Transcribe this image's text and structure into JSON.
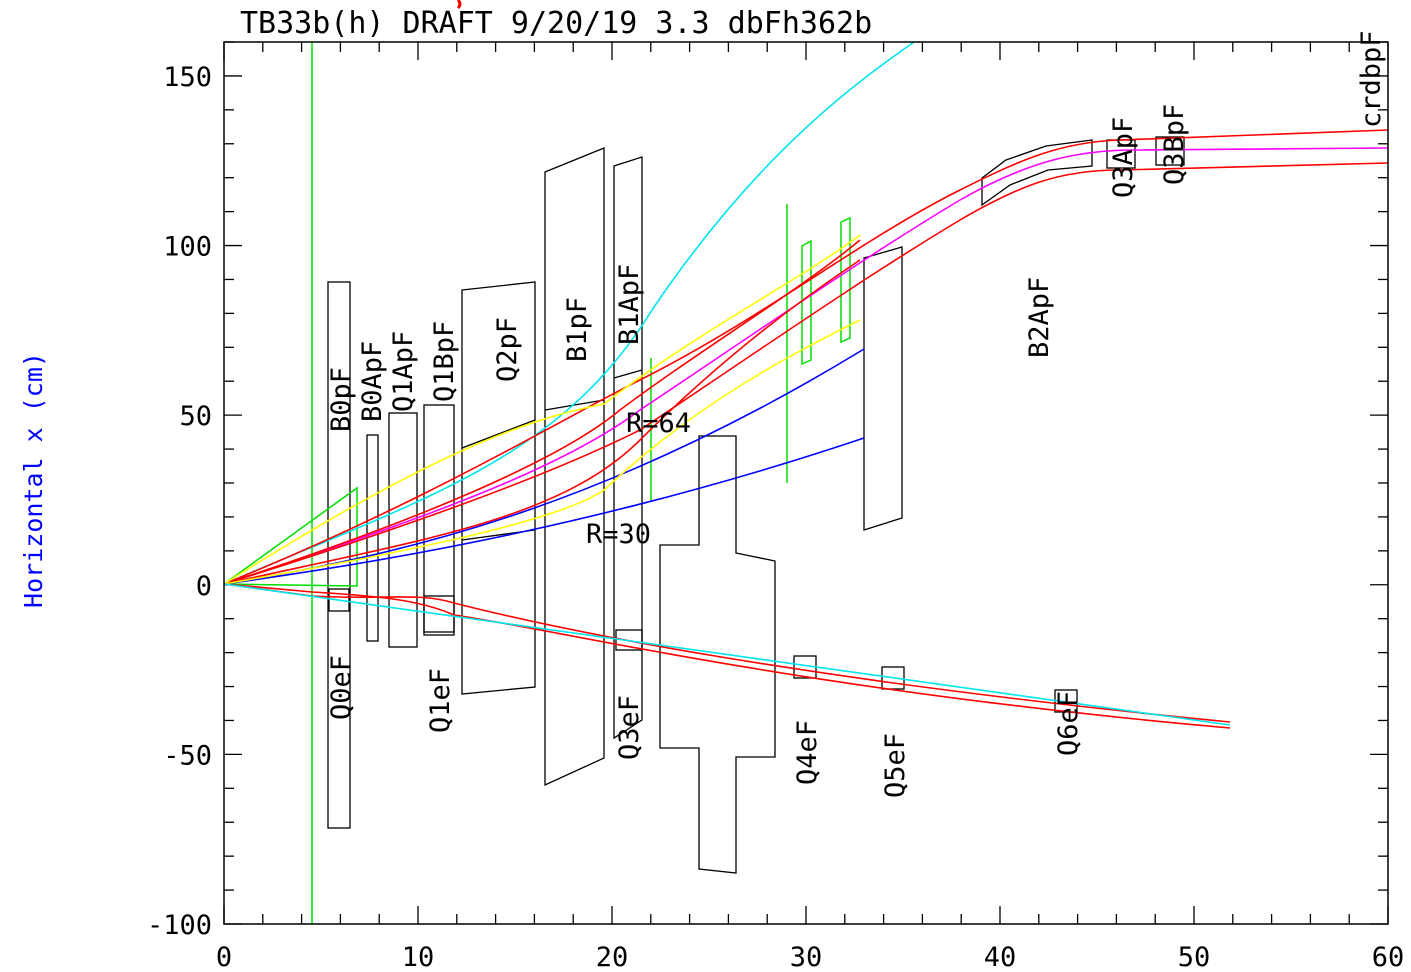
{
  "header": {
    "title": "TB33b(h)  DRAFT 9/20/19  3.3 dbFh362b"
  },
  "axes": {
    "ylabel": "Horizontal x (cm)",
    "x_range": [
      0,
      60
    ],
    "y_range": [
      -100,
      160
    ],
    "x_ticks": [
      "0",
      "10",
      "20",
      "30",
      "40",
      "50",
      "60"
    ],
    "y_ticks": [
      "-100",
      "-50",
      "0",
      "50",
      "100",
      "150"
    ]
  },
  "colors": {
    "frame": "#000000",
    "element": "#000000",
    "ray_red": "#ff0000",
    "ray_magenta": "#ff00ff",
    "ray_cyan": "#00e5ee",
    "ray_blue": "#0000ff",
    "ray_green": "#00dd00",
    "ray_yellow": "#ffff00",
    "label_blue": "#0000ff",
    "accent_red": "#ff0000"
  },
  "labels": {
    "B0pF": "B0pF",
    "B0ApF": "B0ApF",
    "Q1ApF": "Q1ApF",
    "Q1BpF": "Q1BpF",
    "Q2pF": "Q2pF",
    "B1pF": "B1pF",
    "B1ApF": "B1ApF",
    "B2ApF": "B2ApF",
    "Q3ApF": "Q3ApF",
    "Q3BpF": "Q3BpF",
    "crdbpF": "crdbpF",
    "Q0eF": "Q0eF",
    "Q1eF": "Q1eF",
    "Q3eF": "Q3eF",
    "Q4eF": "Q4eF",
    "Q5eF": "Q5eF",
    "Q6eF": "Q6eF",
    "R64": "R=64",
    "R30": "R=30"
  }
}
